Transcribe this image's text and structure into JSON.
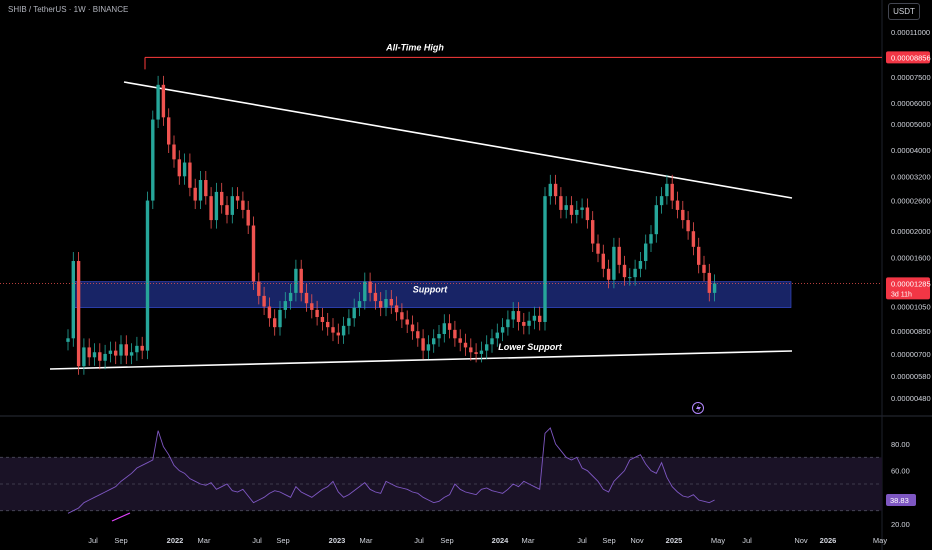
{
  "header": {
    "symbol": "SHIB / TetherUS · 1W · BINANCE",
    "currency_button": "USDT"
  },
  "price_axis": {
    "ticks": [
      "0.00011000",
      "0.00007500",
      "0.00006000",
      "0.00005000",
      "0.00004000",
      "0.00003200",
      "0.00002600",
      "0.00002000",
      "0.00001600",
      "0.00001050",
      "0.00000850",
      "0.00000700",
      "0.00000580",
      "0.00000480"
    ],
    "ath_tag": "0.00008856",
    "last_tag": "0.00001285",
    "countdown_tag": "3d 11h"
  },
  "rsi_axis": {
    "ticks": [
      "80.00",
      "60.00",
      "20.00"
    ],
    "value_tag": "38.83"
  },
  "time_axis": {
    "labels": [
      "Jul",
      "Sep",
      "2022",
      "Mar",
      "Jul",
      "Sep",
      "2023",
      "Mar",
      "Jul",
      "Sep",
      "2024",
      "Mar",
      "Jul",
      "Sep",
      "Nov",
      "2025",
      "May",
      "Jul",
      "Nov",
      "2026",
      "May"
    ]
  },
  "annotations": {
    "ath": "All-Time High",
    "support": "Support",
    "lower_support": "Lower Support"
  },
  "colors": {
    "background": "#000000",
    "up": "#26a69a",
    "down": "#ef5350",
    "ath_line": "#ff3b3b",
    "support_zone": "#1c2a78",
    "trendline": "#ffffff",
    "rsi_line": "#7e57c2",
    "rsi_band": "#1a1226"
  },
  "chart_data": {
    "type": "candlestick",
    "series": [
      {
        "name": "SHIB / TetherUS · 1W · BINANCE",
        "close": [
          8e-06,
          1.55e-05,
          6.3e-06,
          7.4e-06,
          6.8e-06,
          7.1e-06,
          6.6e-06,
          7e-06,
          7.2e-06,
          6.9e-06,
          7.6e-06,
          6.9e-06,
          7.1e-06,
          7.5e-06,
          7.2e-06,
          2.6e-05,
          5.2e-05,
          7e-05,
          5.3e-05,
          4.2e-05,
          3.7e-05,
          3.2e-05,
          3.6e-05,
          2.9e-05,
          2.6e-05,
          3.1e-05,
          2.7e-05,
          2.2e-05,
          2.8e-05,
          2.5e-05,
          2.3e-05,
          2.7e-05,
          2.6e-05,
          2.4e-05,
          2.1e-05,
          1.3e-05,
          1.15e-05,
          1.05e-05,
          9.5e-06,
          8.8e-06,
          1.02e-05,
          1.1e-05,
          1.18e-05,
          1.45e-05,
          1.18e-05,
          1.08e-05,
          1.02e-05,
          9.6e-06,
          9.2e-06,
          8.8e-06,
          8.4e-06,
          8.2e-06,
          8.9e-06,
          9.5e-06,
          1.04e-05,
          1.1e-05,
          1.3e-05,
          1.18e-05,
          1.1e-05,
          1.04e-05,
          1.12e-05,
          1.06e-05,
          1e-05,
          9.4e-06,
          9e-06,
          8.5e-06,
          8e-06,
          7.2e-06,
          7.6e-06,
          8e-06,
          8.3e-06,
          9.1e-06,
          8.6e-06,
          8e-06,
          7.7e-06,
          7.4e-06,
          7.1e-06,
          7e-06,
          7.2e-06,
          7.6e-06,
          8e-06,
          8.4e-06,
          8.8e-06,
          9.4e-06,
          1.01e-05,
          9.2e-06,
          8.9e-06,
          9.3e-06,
          9.7e-06,
          9.2e-06,
          2.7e-05,
          3e-05,
          2.7e-05,
          2.4e-05,
          2.5e-05,
          2.3e-05,
          2.4e-05,
          2.45e-05,
          2.2e-05,
          1.8e-05,
          1.65e-05,
          1.45e-05,
          1.32e-05,
          1.75e-05,
          1.5e-05,
          1.35e-05,
          1.35e-05,
          1.45e-05,
          1.55e-05,
          1.8e-05,
          1.95e-05,
          2.5e-05,
          2.7e-05,
          3e-05,
          2.6e-05,
          2.4e-05,
          2.2e-05,
          2e-05,
          1.75e-05,
          1.5e-05,
          1.4e-05,
          1.18e-05,
          1.28e-05
        ]
      },
      {
        "name": "RSI",
        "values": [
          28,
          30,
          32,
          36,
          38,
          40,
          42,
          44,
          46,
          48,
          52,
          55,
          58,
          62,
          64,
          66,
          68,
          90,
          78,
          72,
          64,
          60,
          58,
          54,
          52,
          50,
          49,
          51,
          46,
          48,
          50,
          45,
          44,
          46,
          41,
          36,
          38,
          40,
          43,
          45,
          44,
          42,
          40,
          48,
          44,
          42,
          40,
          43,
          46,
          48,
          52,
          44,
          40,
          42,
          45,
          48,
          51,
          46,
          44,
          43,
          52,
          50,
          48,
          47,
          46,
          44,
          43,
          40,
          38,
          36,
          37,
          40,
          42,
          50,
          46,
          44,
          43,
          42,
          46,
          47,
          45,
          44,
          43,
          46,
          50,
          48,
          52,
          50,
          48,
          46,
          88,
          92,
          80,
          75,
          70,
          68,
          70,
          62,
          60,
          56,
          52,
          46,
          44,
          52,
          56,
          60,
          68,
          70,
          72,
          65,
          60,
          58,
          66,
          55,
          48,
          44,
          41,
          40,
          42,
          38,
          37,
          36,
          38
        ]
      }
    ],
    "ath": 8.856e-05,
    "support_zone": [
      1.04e-05,
      1.3e-05
    ],
    "annotations": [
      "All-Time High",
      "Support",
      "Lower Support"
    ]
  }
}
